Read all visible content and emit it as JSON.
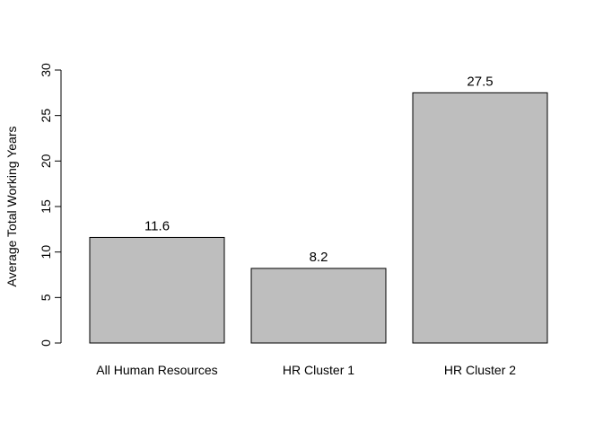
{
  "chart_data": {
    "type": "bar",
    "title": "",
    "xlabel": "",
    "ylabel": "Average Total Working Years",
    "categories": [
      "All Human Resources",
      "HR Cluster 1",
      "HR Cluster 2"
    ],
    "values": [
      11.6,
      8.2,
      27.5
    ],
    "data_labels": [
      "11.6",
      "8.2",
      "27.5"
    ],
    "ylim": [
      0,
      30
    ],
    "yticks": [
      0,
      5,
      10,
      15,
      20,
      25,
      30
    ],
    "ytick_labels": [
      "0",
      "5",
      "10",
      "15",
      "20",
      "25",
      "30"
    ],
    "grid": false,
    "legend": "none",
    "bar_color": "#bebebe",
    "bar_edge_color": "#000000"
  }
}
